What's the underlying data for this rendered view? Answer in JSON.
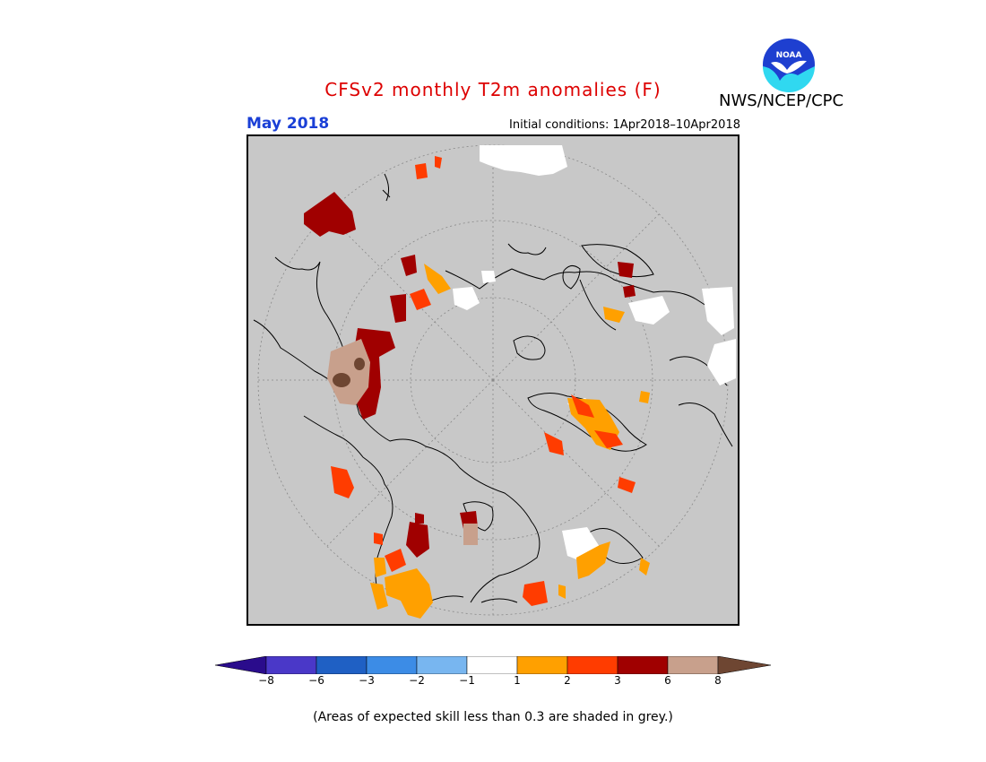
{
  "header": {
    "title": "CFSv2 monthly T2m anomalies (F)",
    "month": "May 2018",
    "initial_conditions": "Initial conditions: 1Apr2018–10Apr2018",
    "agency": "NWS/NCEP/CPC",
    "logo_text": "NOAA"
  },
  "colorbar": {
    "tick_labels": [
      "−8",
      "−6",
      "−3",
      "−2",
      "−1",
      "1",
      "2",
      "3",
      "6",
      "8"
    ],
    "colors": {
      "lt_m8": "#2a0c8c",
      "m8_m6": "#4a38c8",
      "m6_m3": "#1f60c4",
      "m3_m2": "#3c8ce6",
      "m2_m1": "#78b6f0",
      "m1_1": "#ffffff",
      "1_2": "#ffa000",
      "2_3": "#ff3c00",
      "3_6": "#a00000",
      "6_8": "#c8a08c",
      "gt_8": "#6e4632"
    }
  },
  "footnote": "(Areas of expected skill less than 0.3 are shaded in grey.)",
  "map": {
    "projection": "north-polar-stereographic",
    "skill_mask_color": "#c8c8c8"
  }
}
